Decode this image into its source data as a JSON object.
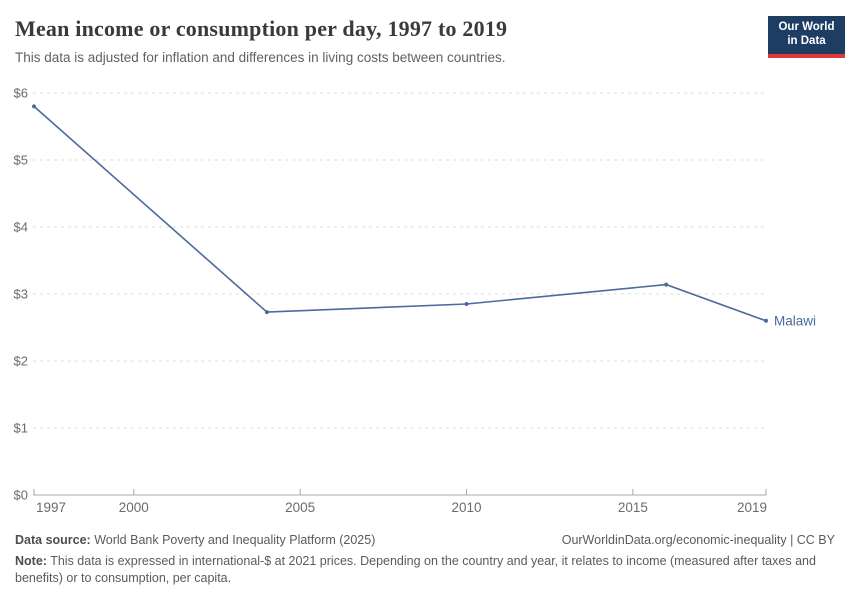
{
  "header": {
    "title": "Mean income or consumption per day, 1997 to 2019",
    "subtitle": "This data is adjusted for inflation and differences in living costs between countries.",
    "logo": {
      "line1": "Our World",
      "line2": "in Data"
    }
  },
  "chart_data": {
    "type": "line",
    "title": "Mean income or consumption per day, 1997 to 2019",
    "entity": "Malawi",
    "x": [
      1997,
      2004,
      2010,
      2016,
      2019
    ],
    "values": [
      5.8,
      2.73,
      2.85,
      3.14,
      2.6
    ],
    "unit": "international-$ at 2021 prices per day",
    "xlabel": "",
    "ylabel": "",
    "xlim": [
      1997,
      2019
    ],
    "ylim": [
      0,
      6
    ],
    "x_ticks": [
      1997,
      2000,
      2005,
      2010,
      2015,
      2019
    ],
    "x_tick_labels": [
      "1997",
      "2000",
      "2005",
      "2010",
      "2015",
      "2019"
    ],
    "y_ticks": [
      0,
      1,
      2,
      3,
      4,
      5,
      6
    ],
    "y_tick_labels": [
      "$0",
      "$1",
      "$2",
      "$3",
      "$4",
      "$5",
      "$6"
    ],
    "grid": "horizontal-dashed",
    "legend_position": "end-of-line-label",
    "line_color": "#4c6a9c",
    "label_color": "#4c6a9c",
    "grid_color": "#dcdcdc",
    "axis_color": "#a8a8a8",
    "tick_label_color": "#6b6b6b"
  },
  "footer": {
    "datasource_label": "Data source:",
    "datasource": "World Bank Poverty and Inequality Platform (2025)",
    "url": "OurWorldinData.org/economic-inequality | CC BY",
    "note_label": "Note:",
    "note": "This data is expressed in international-$ at 2021 prices. Depending on the country and year, it relates to income (measured after taxes and benefits) or to consumption, per capita."
  }
}
